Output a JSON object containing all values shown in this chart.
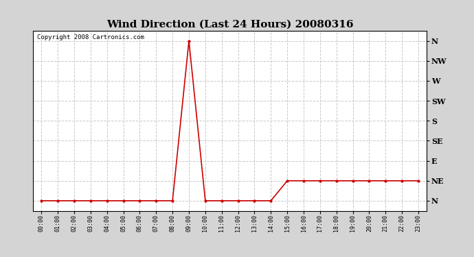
{
  "title": "Wind Direction (Last 24 Hours) 20080316",
  "copyright_text": "Copyright 2008 Cartronics.com",
  "background_color": "#ffffff",
  "plot_bg_color": "#ffffff",
  "outer_bg_color": "#d4d4d4",
  "line_color": "#cc0000",
  "marker_color": "#cc0000",
  "y_labels": [
    "N",
    "NE",
    "E",
    "SE",
    "S",
    "SW",
    "W",
    "NW",
    "N"
  ],
  "y_values": [
    0,
    1,
    2,
    3,
    4,
    5,
    6,
    7,
    8
  ],
  "x_hours": [
    0,
    1,
    2,
    3,
    4,
    5,
    6,
    7,
    8,
    9,
    10,
    11,
    12,
    13,
    14,
    15,
    16,
    17,
    18,
    19,
    20,
    21,
    22,
    23
  ],
  "wind_data": [
    0,
    0,
    0,
    0,
    0,
    0,
    0,
    0,
    0,
    8,
    0,
    0,
    0,
    0,
    0,
    1,
    1,
    1,
    1,
    1,
    1,
    1,
    1,
    1
  ],
  "xlim": [
    -0.5,
    23.5
  ],
  "ylim": [
    -0.5,
    8.5
  ],
  "grid_color": "#c8c8c8",
  "grid_style": "--",
  "title_fontsize": 11,
  "copyright_fontsize": 6.5,
  "tick_fontsize": 6,
  "ytick_fontsize": 8
}
